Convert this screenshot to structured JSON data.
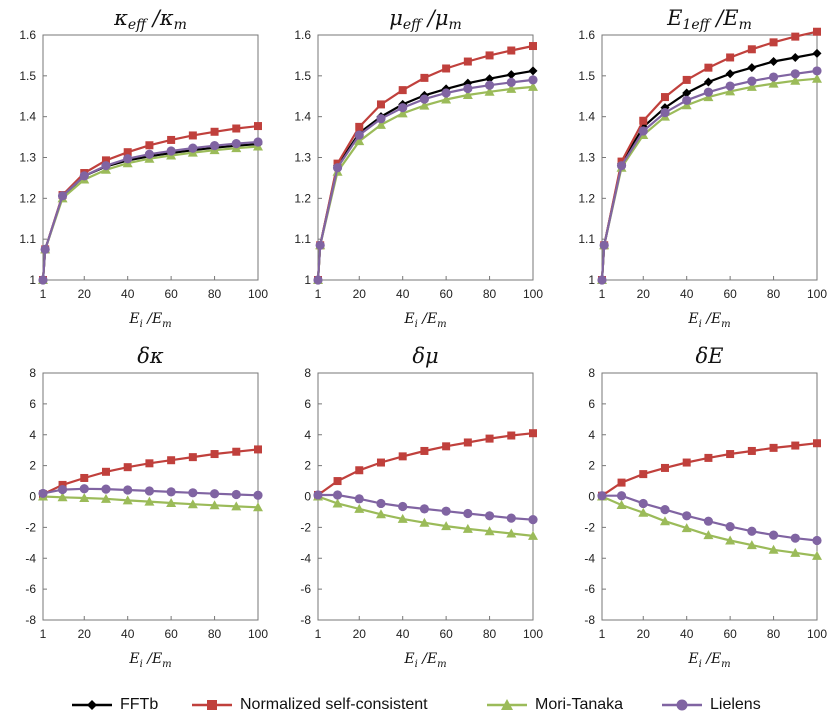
{
  "series_styles": [
    {
      "name": "FFTb",
      "color": "#000000",
      "marker": "diamond"
    },
    {
      "name": "Normalized self-consistent",
      "color": "#c0403c",
      "marker": "square"
    },
    {
      "name": "Mori-Tanaka",
      "color": "#9bbb59",
      "marker": "triangle"
    },
    {
      "name": "Lielens",
      "color": "#8064a2",
      "marker": "circle"
    }
  ],
  "chart_data": [
    {
      "type": "line",
      "title": "κeff /κm",
      "title_parts": {
        "base1": "κ",
        "sub1": "eff",
        "sep": "/",
        "base2": "κ",
        "sub2": "m"
      },
      "xlabel_parts": {
        "base1": "E",
        "sub1": "i",
        "sep": "/",
        "base2": "E",
        "sub2": "m"
      },
      "xlim": [
        1,
        100
      ],
      "ylim": [
        1,
        1.6
      ],
      "xticks": [
        1,
        20,
        40,
        60,
        80,
        100
      ],
      "yticks": [
        "1",
        "1.1",
        "1.2",
        "1.3",
        "1.4",
        "1.5",
        "1.6"
      ],
      "x": [
        1,
        2,
        10,
        20,
        30,
        40,
        50,
        60,
        70,
        80,
        90,
        100
      ],
      "series": [
        {
          "name": "FFTb",
          "values": [
            1,
            1.075,
            1.205,
            1.255,
            1.278,
            1.293,
            1.303,
            1.311,
            1.318,
            1.324,
            1.329,
            1.333
          ]
        },
        {
          "name": "Normalized self-consistent",
          "values": [
            1,
            1.075,
            1.208,
            1.262,
            1.293,
            1.313,
            1.33,
            1.343,
            1.354,
            1.363,
            1.371,
            1.377
          ]
        },
        {
          "name": "Mori-Tanaka",
          "values": [
            1,
            1.075,
            1.2,
            1.246,
            1.27,
            1.286,
            1.297,
            1.305,
            1.312,
            1.318,
            1.323,
            1.327
          ]
        },
        {
          "name": "Lielens",
          "values": [
            1,
            1.075,
            1.206,
            1.255,
            1.28,
            1.297,
            1.308,
            1.316,
            1.323,
            1.329,
            1.334,
            1.338
          ]
        }
      ]
    },
    {
      "type": "line",
      "title": "μeff /μm",
      "title_parts": {
        "base1": "μ",
        "sub1": "eff",
        "sep": "/",
        "base2": "μ",
        "sub2": "m"
      },
      "xlabel_parts": {
        "base1": "E",
        "sub1": "i",
        "sep": "/",
        "base2": "E",
        "sub2": "m"
      },
      "xlim": [
        1,
        100
      ],
      "ylim": [
        1,
        1.6
      ],
      "xticks": [
        1,
        20,
        40,
        60,
        80,
        100
      ],
      "yticks": [
        "1",
        "1.1",
        "1.2",
        "1.3",
        "1.4",
        "1.5",
        "1.6"
      ],
      "x": [
        1,
        2,
        10,
        20,
        30,
        40,
        50,
        60,
        70,
        80,
        90,
        100
      ],
      "series": [
        {
          "name": "FFTb",
          "values": [
            1,
            1.085,
            1.28,
            1.36,
            1.4,
            1.43,
            1.452,
            1.468,
            1.482,
            1.493,
            1.503,
            1.512
          ]
        },
        {
          "name": "Normalized self-consistent",
          "values": [
            1,
            1.085,
            1.285,
            1.375,
            1.43,
            1.465,
            1.495,
            1.518,
            1.535,
            1.55,
            1.562,
            1.573
          ]
        },
        {
          "name": "Mori-Tanaka",
          "values": [
            1,
            1.085,
            1.265,
            1.34,
            1.38,
            1.408,
            1.427,
            1.442,
            1.453,
            1.461,
            1.468,
            1.473
          ]
        },
        {
          "name": "Lielens",
          "values": [
            1,
            1.085,
            1.275,
            1.355,
            1.395,
            1.422,
            1.443,
            1.458,
            1.469,
            1.477,
            1.484,
            1.49
          ]
        }
      ]
    },
    {
      "type": "line",
      "title": "E1eff /Em",
      "title_parts": {
        "base1": "E",
        "sub1": "1eff",
        "sep": "/",
        "base2": "E",
        "sub2": "m"
      },
      "xlabel_parts": {
        "base1": "E",
        "sub1": "i",
        "sep": "/",
        "base2": "E",
        "sub2": "m"
      },
      "xlim": [
        1,
        100
      ],
      "ylim": [
        1,
        1.6
      ],
      "xticks": [
        1,
        20,
        40,
        60,
        80,
        100
      ],
      "yticks": [
        "1",
        "1.1",
        "1.2",
        "1.3",
        "1.4",
        "1.5",
        "1.6"
      ],
      "x": [
        1,
        2,
        10,
        20,
        30,
        40,
        50,
        60,
        70,
        80,
        90,
        100
      ],
      "series": [
        {
          "name": "FFTb",
          "values": [
            1,
            1.085,
            1.285,
            1.375,
            1.422,
            1.458,
            1.485,
            1.505,
            1.52,
            1.535,
            1.545,
            1.555
          ]
        },
        {
          "name": "Normalized self-consistent",
          "values": [
            1,
            1.085,
            1.29,
            1.39,
            1.448,
            1.49,
            1.52,
            1.545,
            1.565,
            1.582,
            1.596,
            1.608
          ]
        },
        {
          "name": "Mori-Tanaka",
          "values": [
            1,
            1.085,
            1.275,
            1.355,
            1.4,
            1.428,
            1.448,
            1.462,
            1.473,
            1.481,
            1.488,
            1.493
          ]
        },
        {
          "name": "Lielens",
          "values": [
            1,
            1.085,
            1.28,
            1.365,
            1.41,
            1.44,
            1.46,
            1.475,
            1.487,
            1.497,
            1.505,
            1.512
          ]
        }
      ]
    },
    {
      "type": "line",
      "title": "δκ",
      "title_parts": {
        "base1": "δκ",
        "sub1": "",
        "sep": "",
        "base2": "",
        "sub2": ""
      },
      "xlabel_parts": {
        "base1": "E",
        "sub1": "i",
        "sep": "/",
        "base2": "E",
        "sub2": "m"
      },
      "xlim": [
        1,
        100
      ],
      "ylim": [
        -8,
        8
      ],
      "xticks": [
        1,
        20,
        40,
        60,
        80,
        100
      ],
      "yticks": [
        "-8",
        "-6",
        "-4",
        "-2",
        "0",
        "2",
        "4",
        "6",
        "8"
      ],
      "x": [
        1,
        10,
        20,
        30,
        40,
        50,
        60,
        70,
        80,
        90,
        100
      ],
      "series": [
        {
          "name": "Normalized self-consistent",
          "values": [
            0.15,
            0.75,
            1.2,
            1.6,
            1.9,
            2.15,
            2.35,
            2.55,
            2.75,
            2.9,
            3.05
          ]
        },
        {
          "name": "Mori-Tanaka",
          "values": [
            0,
            -0.05,
            -0.1,
            -0.15,
            -0.25,
            -0.33,
            -0.42,
            -0.5,
            -0.57,
            -0.64,
            -0.7
          ]
        },
        {
          "name": "Lielens",
          "values": [
            0.2,
            0.45,
            0.5,
            0.48,
            0.42,
            0.36,
            0.3,
            0.24,
            0.18,
            0.13,
            0.08
          ]
        }
      ]
    },
    {
      "type": "line",
      "title": "δμ",
      "title_parts": {
        "base1": "δμ",
        "sub1": "",
        "sep": "",
        "base2": "",
        "sub2": ""
      },
      "xlabel_parts": {
        "base1": "E",
        "sub1": "i",
        "sep": "/",
        "base2": "E",
        "sub2": "m"
      },
      "xlim": [
        1,
        100
      ],
      "ylim": [
        -8,
        8
      ],
      "xticks": [
        1,
        20,
        40,
        60,
        80,
        100
      ],
      "yticks": [
        "-8",
        "-6",
        "-4",
        "-2",
        "0",
        "2",
        "4",
        "6",
        "8"
      ],
      "x": [
        1,
        10,
        20,
        30,
        40,
        50,
        60,
        70,
        80,
        90,
        100
      ],
      "series": [
        {
          "name": "Normalized self-consistent",
          "values": [
            0.1,
            1.0,
            1.7,
            2.2,
            2.6,
            2.95,
            3.25,
            3.5,
            3.75,
            3.95,
            4.1
          ]
        },
        {
          "name": "Mori-Tanaka",
          "values": [
            0,
            -0.45,
            -0.8,
            -1.15,
            -1.45,
            -1.7,
            -1.92,
            -2.1,
            -2.25,
            -2.4,
            -2.55
          ]
        },
        {
          "name": "Lielens",
          "values": [
            0.1,
            0.1,
            -0.15,
            -0.45,
            -0.65,
            -0.8,
            -0.95,
            -1.1,
            -1.25,
            -1.4,
            -1.5
          ]
        }
      ]
    },
    {
      "type": "line",
      "title": "δE",
      "title_parts": {
        "base1": "δE",
        "sub1": "",
        "sep": "",
        "base2": "",
        "sub2": ""
      },
      "xlabel_parts": {
        "base1": "E",
        "sub1": "i",
        "sep": "/",
        "base2": "E",
        "sub2": "m"
      },
      "xlim": [
        1,
        100
      ],
      "ylim": [
        -8,
        8
      ],
      "xticks": [
        1,
        20,
        40,
        60,
        80,
        100
      ],
      "yticks": [
        "-8",
        "-6",
        "-4",
        "-2",
        "0",
        "2",
        "4",
        "6",
        "8"
      ],
      "x": [
        1,
        10,
        20,
        30,
        40,
        50,
        60,
        70,
        80,
        90,
        100
      ],
      "series": [
        {
          "name": "Normalized self-consistent",
          "values": [
            0.05,
            0.9,
            1.45,
            1.85,
            2.2,
            2.5,
            2.75,
            2.95,
            3.15,
            3.3,
            3.45
          ]
        },
        {
          "name": "Mori-Tanaka",
          "values": [
            0,
            -0.55,
            -1.05,
            -1.6,
            -2.05,
            -2.5,
            -2.85,
            -3.15,
            -3.45,
            -3.65,
            -3.85
          ]
        },
        {
          "name": "Lielens",
          "values": [
            0.05,
            0.05,
            -0.45,
            -0.85,
            -1.25,
            -1.6,
            -1.95,
            -2.25,
            -2.5,
            -2.7,
            -2.85
          ]
        }
      ]
    }
  ]
}
